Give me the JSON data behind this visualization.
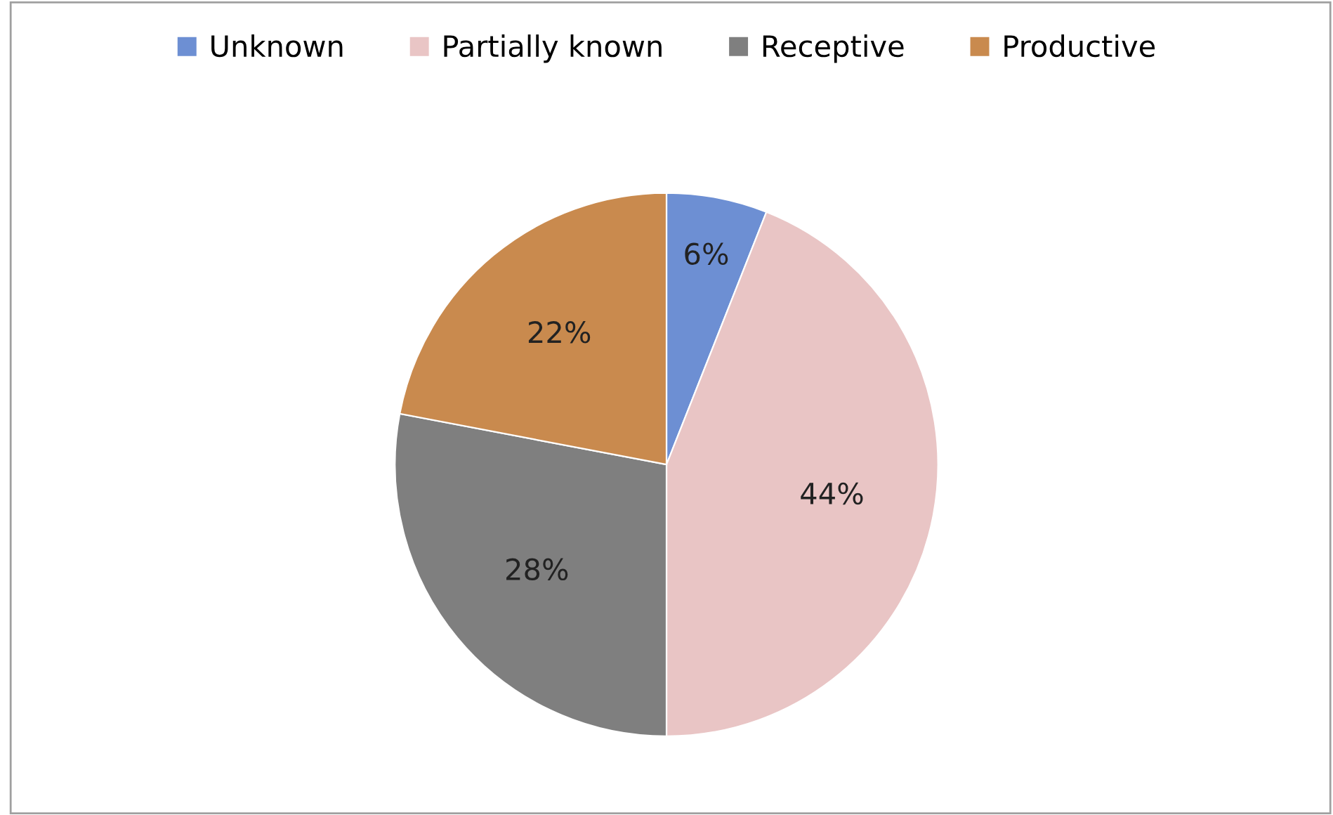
{
  "chart_data": {
    "type": "pie",
    "categories": [
      "Unknown",
      "Partially known",
      "Receptive",
      "Productive"
    ],
    "values": [
      6,
      44,
      28,
      22
    ],
    "colors": [
      "#6d8fd3",
      "#e9c5c5",
      "#7f7f7f",
      "#c98a4e"
    ],
    "value_labels": [
      "6%",
      "44%",
      "28%",
      "22%"
    ],
    "legend": "top"
  }
}
